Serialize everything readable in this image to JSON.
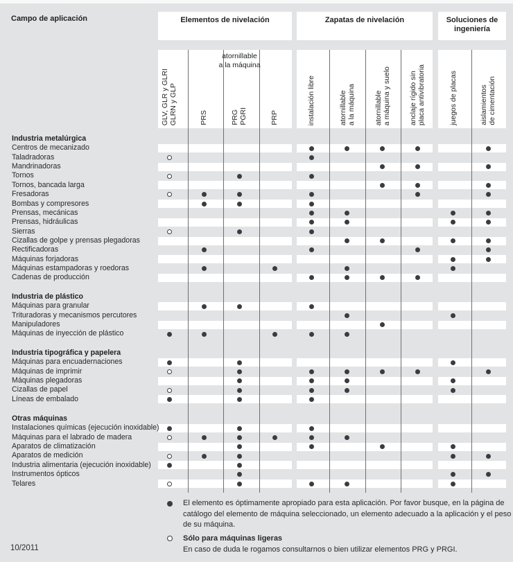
{
  "title": "Campo de aplicación",
  "footer": {
    "date": "10/2011"
  },
  "column_groups": [
    {
      "title": "Elementos de nivelación",
      "subheader": "atornillable\na la máquina"
    },
    {
      "title": "Zapatas de nivelación"
    },
    {
      "title": "Soluciones de\ningeniería"
    }
  ],
  "columns": [
    {
      "group": 0,
      "lines": [
        "GLV, GLR y GLRI",
        "GLRN y GLP"
      ]
    },
    {
      "group": 0,
      "lines": [
        "PRS"
      ]
    },
    {
      "group": 0,
      "lines": [
        "PRG",
        "PGRI"
      ]
    },
    {
      "group": 0,
      "lines": [
        "PRP"
      ]
    },
    {
      "group": 1,
      "lines": [
        "instalación libre"
      ]
    },
    {
      "group": 1,
      "lines": [
        "atornillable",
        "a la máquina"
      ]
    },
    {
      "group": 1,
      "lines": [
        "atornillable",
        "a máquina y suelo"
      ]
    },
    {
      "group": 1,
      "lines": [
        "anclaje rígido sin",
        "placa antivibratoria"
      ]
    },
    {
      "group": 2,
      "lines": [
        "juegos de placas"
      ]
    },
    {
      "group": 2,
      "lines": [
        "aislamientos",
        "de cimentación"
      ]
    }
  ],
  "row_groups": [
    {
      "header": "Industria metalúrgica",
      "rows": [
        {
          "label": "Centros de mecanizado",
          "marks": [
            [
              5,
              "f"
            ],
            [
              6,
              "f"
            ],
            [
              7,
              "f"
            ],
            [
              8,
              "f"
            ],
            [
              10,
              "f"
            ]
          ]
        },
        {
          "label": "Taladradoras",
          "marks": [
            [
              1,
              "o"
            ],
            [
              5,
              "f"
            ]
          ]
        },
        {
          "label": "Mandrinadoras",
          "marks": [
            [
              7,
              "f"
            ],
            [
              8,
              "f"
            ],
            [
              10,
              "f"
            ]
          ]
        },
        {
          "label": "Tornos",
          "marks": [
            [
              1,
              "o"
            ],
            [
              3,
              "f"
            ],
            [
              5,
              "f"
            ]
          ]
        },
        {
          "label": "Tornos, bancada larga",
          "marks": [
            [
              7,
              "f"
            ],
            [
              8,
              "f"
            ],
            [
              10,
              "f"
            ]
          ]
        },
        {
          "label": "Fresadoras",
          "marks": [
            [
              1,
              "o"
            ],
            [
              2,
              "f"
            ],
            [
              3,
              "f"
            ],
            [
              5,
              "f"
            ],
            [
              8,
              "f"
            ],
            [
              10,
              "f"
            ]
          ]
        },
        {
          "label": "Bombas y compresores",
          "marks": [
            [
              2,
              "f"
            ],
            [
              3,
              "f"
            ],
            [
              5,
              "f"
            ]
          ]
        },
        {
          "label": "Prensas, mecánicas",
          "marks": [
            [
              5,
              "f"
            ],
            [
              6,
              "f"
            ],
            [
              9,
              "f"
            ],
            [
              10,
              "f"
            ]
          ]
        },
        {
          "label": "Prensas, hidráulicas",
          "marks": [
            [
              5,
              "f"
            ],
            [
              6,
              "f"
            ],
            [
              9,
              "f"
            ],
            [
              10,
              "f"
            ]
          ]
        },
        {
          "label": "Sierras",
          "marks": [
            [
              1,
              "o"
            ],
            [
              3,
              "f"
            ],
            [
              5,
              "f"
            ]
          ]
        },
        {
          "label": "Cizallas de golpe y prensas plegadoras",
          "marks": [
            [
              6,
              "f"
            ],
            [
              7,
              "f"
            ],
            [
              9,
              "f"
            ],
            [
              10,
              "f"
            ]
          ]
        },
        {
          "label": "Rectificadoras",
          "marks": [
            [
              2,
              "f"
            ],
            [
              5,
              "f"
            ],
            [
              8,
              "f"
            ],
            [
              10,
              "f"
            ]
          ]
        },
        {
          "label": "Máquinas forjadoras",
          "marks": [
            [
              9,
              "f"
            ],
            [
              10,
              "f"
            ]
          ]
        },
        {
          "label": "Máquinas estampadoras y roedoras",
          "marks": [
            [
              2,
              "f"
            ],
            [
              4,
              "f"
            ],
            [
              6,
              "f"
            ],
            [
              9,
              "f"
            ]
          ]
        },
        {
          "label": "Cadenas de producción",
          "marks": [
            [
              5,
              "f"
            ],
            [
              6,
              "f"
            ],
            [
              7,
              "f"
            ],
            [
              8,
              "f"
            ]
          ]
        }
      ]
    },
    {
      "header": "Industria de plástico",
      "rows": [
        {
          "label": "Máquinas para granular",
          "marks": [
            [
              2,
              "f"
            ],
            [
              3,
              "f"
            ],
            [
              5,
              "f"
            ]
          ]
        },
        {
          "label": "Trituradoras y mecanismos percutores",
          "marks": [
            [
              6,
              "f"
            ],
            [
              9,
              "f"
            ]
          ]
        },
        {
          "label": "Manipuladores",
          "marks": [
            [
              7,
              "f"
            ]
          ]
        },
        {
          "label": "Máquinas de inyección de plástico",
          "marks": [
            [
              1,
              "f"
            ],
            [
              2,
              "f"
            ],
            [
              4,
              "f"
            ],
            [
              5,
              "f"
            ],
            [
              6,
              "f"
            ]
          ]
        }
      ]
    },
    {
      "header": "Industria tipográfica y papelera",
      "rows": [
        {
          "label": "Máquinas para encuadernaciones",
          "marks": [
            [
              1,
              "f"
            ],
            [
              3,
              "f"
            ],
            [
              9,
              "f"
            ]
          ]
        },
        {
          "label": "Máquinas de imprimir",
          "marks": [
            [
              1,
              "o"
            ],
            [
              3,
              "f"
            ],
            [
              5,
              "f"
            ],
            [
              6,
              "f"
            ],
            [
              7,
              "f"
            ],
            [
              8,
              "f"
            ],
            [
              10,
              "f"
            ]
          ]
        },
        {
          "label": "Máquinas plegadoras",
          "marks": [
            [
              3,
              "f"
            ],
            [
              5,
              "f"
            ],
            [
              6,
              "f"
            ],
            [
              9,
              "f"
            ]
          ]
        },
        {
          "label": "Cizallas de papel",
          "marks": [
            [
              1,
              "o"
            ],
            [
              3,
              "f"
            ],
            [
              5,
              "f"
            ],
            [
              6,
              "f"
            ],
            [
              9,
              "f"
            ]
          ]
        },
        {
          "label": "Líneas de embalado",
          "marks": [
            [
              1,
              "f"
            ],
            [
              3,
              "f"
            ],
            [
              5,
              "f"
            ]
          ]
        }
      ]
    },
    {
      "header": "Otras máquinas",
      "rows": [
        {
          "label": "Instalaciones químicas (ejecución inoxidable)",
          "marks": [
            [
              1,
              "f"
            ],
            [
              3,
              "f"
            ],
            [
              5,
              "f"
            ]
          ]
        },
        {
          "label": "Máquinas para el labrado de madera",
          "marks": [
            [
              1,
              "o"
            ],
            [
              2,
              "f"
            ],
            [
              3,
              "f"
            ],
            [
              4,
              "f"
            ],
            [
              5,
              "f"
            ],
            [
              6,
              "f"
            ]
          ]
        },
        {
          "label": "Aparatos de climatización",
          "marks": [
            [
              3,
              "f"
            ],
            [
              5,
              "f"
            ],
            [
              7,
              "f"
            ],
            [
              9,
              "f"
            ]
          ]
        },
        {
          "label": "Aparatos de medición",
          "marks": [
            [
              1,
              "o"
            ],
            [
              2,
              "f"
            ],
            [
              3,
              "f"
            ],
            [
              9,
              "f"
            ],
            [
              10,
              "f"
            ]
          ]
        },
        {
          "label": "Industria alimentaria (ejecución inoxidable)",
          "marks": [
            [
              1,
              "f"
            ],
            [
              3,
              "f"
            ]
          ]
        },
        {
          "label": "Instrumentos ópticos",
          "marks": [
            [
              3,
              "f"
            ],
            [
              9,
              "f"
            ],
            [
              10,
              "f"
            ]
          ]
        },
        {
          "label": "Telares",
          "marks": [
            [
              1,
              "o"
            ],
            [
              3,
              "f"
            ],
            [
              5,
              "f"
            ],
            [
              6,
              "f"
            ],
            [
              9,
              "f"
            ]
          ]
        }
      ]
    }
  ],
  "legend": [
    {
      "symbol": "filled-dot",
      "text": "El elemento es óptimamente apropiado para esta aplicación. Por favor busque, en la página de catálogo del elemento de máquina seleccionado, un elemento adecuado a la aplicación y el peso de su máquina."
    },
    {
      "symbol": "open-circle",
      "bold": "Sólo para máquinas ligeras",
      "text": "En caso de duda le rogamos consultarnos o bien utilizar elementos PRG y PRGI."
    }
  ],
  "colors": {
    "background": "#e2e3e4",
    "panel": "#ffffff",
    "dot": "#3a3c3f",
    "grid_line": "#6d6e70",
    "text": "#1f2022"
  }
}
